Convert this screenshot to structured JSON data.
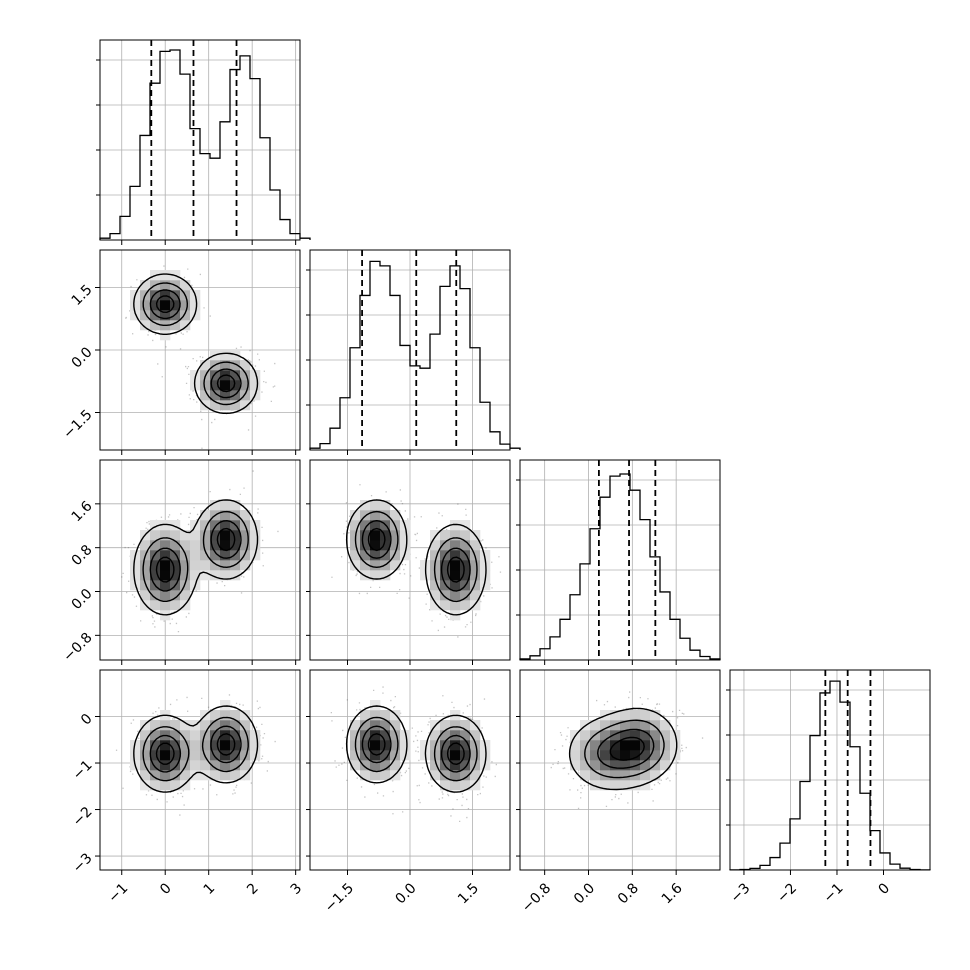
{
  "chart_data": {
    "type": "corner",
    "title": "",
    "n_params": 4,
    "grid": true,
    "colors": {
      "line": "#000000",
      "grid": "#b0b0b0",
      "density": "#000000",
      "scatter": "#555555"
    },
    "ranges": [
      [
        -1.5,
        3.1
      ],
      [
        -2.4,
        2.4
      ],
      [
        -1.25,
        2.4
      ],
      [
        -3.3,
        1.0
      ]
    ],
    "x_tick_labels": [
      {
        "values": [
          -1,
          0,
          1,
          2,
          3
        ],
        "labels": [
          "−1",
          "0",
          "1",
          "2",
          "3"
        ]
      },
      {
        "values": [
          -1.5,
          0.0,
          1.5
        ],
        "labels": [
          "−1.5",
          "0.0",
          "1.5"
        ]
      },
      {
        "values": [
          -0.8,
          0.0,
          0.8,
          1.6
        ],
        "labels": [
          "−0.8",
          "0.0",
          "0.8",
          "1.6"
        ]
      },
      {
        "values": [
          -3,
          -2,
          -1,
          0
        ],
        "labels": [
          "−3",
          "−2",
          "−1",
          "0"
        ]
      }
    ],
    "y_tick_labels": [
      null,
      {
        "values": [
          -1.5,
          0.0,
          1.5
        ],
        "labels": [
          "−1.5",
          "0.0",
          "1.5"
        ]
      },
      {
        "values": [
          -0.8,
          0.0,
          0.8,
          1.6
        ],
        "labels": [
          "−0.8",
          "0.0",
          "0.8",
          "1.6"
        ]
      },
      {
        "values": [
          -3,
          -2,
          -1,
          0
        ],
        "labels": [
          "−3",
          "−2",
          "−1",
          "0"
        ]
      }
    ],
    "quantiles": [
      [
        -0.32,
        0.65,
        1.64
      ],
      [
        -1.15,
        0.15,
        1.11
      ],
      [
        0.19,
        0.74,
        1.22
      ],
      [
        -1.25,
        -0.77,
        -0.28
      ]
    ],
    "marginals": [
      {
        "bin_start": -1.5,
        "bin_width": 0.23,
        "ymax": 4400,
        "counts": [
          40,
          140,
          520,
          1180,
          2300,
          3450,
          4150,
          4180,
          3650,
          2450,
          1900,
          1800,
          2600,
          3750,
          4050,
          3550,
          2250,
          1100,
          450,
          140,
          40
        ]
      },
      {
        "bin_start": -2.4,
        "bin_width": 0.24,
        "ymax": 4400,
        "counts": [
          40,
          140,
          480,
          1150,
          2250,
          3400,
          4150,
          4050,
          3400,
          2300,
          1850,
          1800,
          2550,
          3600,
          4050,
          3550,
          2250,
          1050,
          400,
          130,
          40
        ]
      },
      {
        "bin_start": -1.25,
        "bin_width": 0.1825,
        "ymax": 2850,
        "counts": [
          15,
          60,
          160,
          330,
          580,
          930,
          1370,
          1870,
          2320,
          2620,
          2650,
          2420,
          2000,
          1470,
          970,
          580,
          310,
          140,
          50,
          15
        ]
      },
      {
        "bin_start": -3.3,
        "bin_width": 0.215,
        "ymax": 3050,
        "counts": [
          2,
          8,
          25,
          70,
          190,
          410,
          780,
          1350,
          2050,
          2700,
          2880,
          2560,
          1880,
          1170,
          600,
          260,
          90,
          28,
          8,
          2
        ]
      }
    ],
    "components": [
      {
        "weight": 0.5,
        "mean": [
          0.0,
          1.1,
          0.4,
          -0.8
        ],
        "sd": [
          0.35,
          0.35,
          0.4,
          0.4
        ]
      },
      {
        "weight": 0.5,
        "mean": [
          1.4,
          -0.8,
          0.95,
          -0.6
        ],
        "sd": [
          0.35,
          0.35,
          0.35,
          0.4
        ]
      }
    ]
  }
}
